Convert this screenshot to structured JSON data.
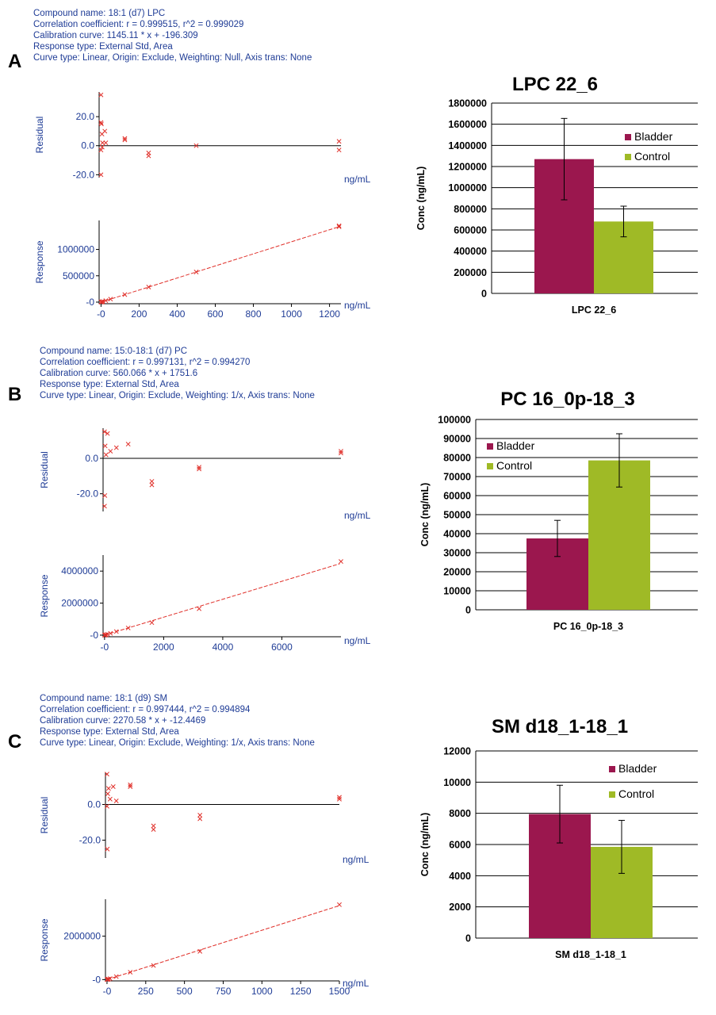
{
  "chart_data": [
    {
      "type": "scatter",
      "panel": "A",
      "info": [
        "Compound name: 18:1 (d7) LPC",
        "Correlation coefficient: r = 0.999515, r^2 = 0.999029",
        "Calibration curve: 1145.11 * x + -196.309",
        "Response type: External Std, Area",
        "Curve type: Linear, Origin: Exclude, Weighting: Null, Axis trans: None"
      ],
      "residual": {
        "ylabel": "Residual",
        "xlabel": "ng/mL",
        "ylim": [
          -22,
          37
        ],
        "yticks": [
          20,
          0,
          -20
        ],
        "ytick_labels": [
          "20.0",
          "0.0",
          "-20.0"
        ],
        "xlim": [
          -10,
          1260
        ],
        "points": [
          [
            0,
            35
          ],
          [
            0,
            16
          ],
          [
            0,
            -3
          ],
          [
            2,
            15
          ],
          [
            5,
            8
          ],
          [
            6,
            -1
          ],
          [
            8,
            2
          ],
          [
            20,
            10
          ],
          [
            25,
            2
          ],
          [
            125,
            5
          ],
          [
            125,
            4
          ],
          [
            250,
            -5
          ],
          [
            250,
            -7
          ],
          [
            500,
            0
          ],
          [
            1250,
            3
          ],
          [
            1250,
            -3
          ],
          [
            0,
            -20
          ]
        ]
      },
      "response": {
        "ylabel": "Response",
        "xlabel": "ng/mL",
        "ylim": [
          -30000,
          1550000
        ],
        "yticks": [
          1000000,
          500000,
          0
        ],
        "ytick_labels": [
          "1000000",
          "500000",
          "-0"
        ],
        "xlim": [
          -10,
          1260
        ],
        "xticks": [
          0,
          200,
          400,
          600,
          800,
          1000,
          1200
        ],
        "xtick_labels": [
          "-0",
          "200",
          "400",
          "600",
          "800",
          "1000",
          "1200"
        ],
        "points": [
          [
            0,
            0
          ],
          [
            1,
            1000
          ],
          [
            2,
            2500
          ],
          [
            5,
            5500
          ],
          [
            10,
            11300
          ],
          [
            25,
            28500
          ],
          [
            50,
            57000
          ],
          [
            125,
            143000
          ],
          [
            250,
            286000
          ],
          [
            500,
            572000
          ],
          [
            1250,
            1430000
          ],
          [
            1250,
            1450000
          ]
        ],
        "fit": {
          "slope": 1145.11,
          "intercept": -196.309
        }
      }
    },
    {
      "type": "bar",
      "panel": "A",
      "title": "LPC 22_6",
      "ylabel": "Conc (ng/mL)",
      "categories": [
        "LPC 22_6"
      ],
      "ylim": [
        0,
        1800000
      ],
      "yticks": [
        0,
        200000,
        400000,
        600000,
        800000,
        1000000,
        1200000,
        1400000,
        1600000,
        1800000
      ],
      "ytick_labels": [
        "0",
        "200000",
        "400000",
        "600000",
        "800000",
        "1000000",
        "1200000",
        "1400000",
        "1600000",
        "1800000"
      ],
      "legend": "right",
      "series": [
        {
          "name": "Bladder",
          "values": [
            1270000
          ],
          "err": [
            385000
          ],
          "color": "#9b174e"
        },
        {
          "name": "Control",
          "values": [
            680000
          ],
          "err": [
            145000
          ],
          "color": "#9fba26"
        }
      ]
    },
    {
      "type": "scatter",
      "panel": "B",
      "info": [
        "Compound name: 15:0-18:1 (d7) PC",
        "Correlation coefficient: r = 0.997131, r^2 = 0.994270",
        "Calibration curve: 560.066 * x + 1751.6",
        "Response type: External Std, Area",
        "Curve type: Linear, Origin: Exclude, Weighting: 1/x, Axis trans: None"
      ],
      "residual": {
        "ylabel": "Residual",
        "xlabel": "ng/mL",
        "ylim": [
          -30,
          17
        ],
        "yticks": [
          0,
          -20
        ],
        "ytick_labels": [
          "0.0",
          "-20.0"
        ],
        "xlim": [
          -50,
          8000
        ],
        "points": [
          [
            0,
            15
          ],
          [
            0,
            -27
          ],
          [
            10,
            -21
          ],
          [
            20,
            7
          ],
          [
            50,
            2
          ],
          [
            100,
            14
          ],
          [
            200,
            4
          ],
          [
            400,
            6
          ],
          [
            800,
            8
          ],
          [
            1600,
            -13
          ],
          [
            1600,
            -15
          ],
          [
            3200,
            -5
          ],
          [
            3200,
            -6
          ],
          [
            8000,
            4
          ],
          [
            8000,
            3
          ]
        ]
      },
      "response": {
        "ylabel": "Response",
        "xlabel": "ng/mL",
        "ylim": [
          -100000,
          5000000
        ],
        "yticks": [
          4000000,
          2000000,
          0
        ],
        "ytick_labels": [
          "4000000",
          "2000000",
          "-0"
        ],
        "xlim": [
          -50,
          8000
        ],
        "xticks": [
          0,
          2000,
          4000,
          6000
        ],
        "xtick_labels": [
          "-0",
          "2000",
          "4000",
          "6000"
        ],
        "points": [
          [
            0,
            0
          ],
          [
            5,
            3000
          ],
          [
            10,
            6000
          ],
          [
            20,
            12000
          ],
          [
            50,
            28000
          ],
          [
            100,
            56000
          ],
          [
            200,
            112000
          ],
          [
            400,
            224000
          ],
          [
            800,
            448000
          ],
          [
            1600,
            780000
          ],
          [
            3200,
            1650000
          ],
          [
            8000,
            4600000
          ]
        ],
        "fit": {
          "slope": 560.066,
          "intercept": 1751.6
        }
      }
    },
    {
      "type": "bar",
      "panel": "B",
      "title": "PC 16_0p-18_3",
      "ylabel": "Conc (ng/mL)",
      "categories": [
        "PC 16_0p-18_3"
      ],
      "ylim": [
        0,
        100000
      ],
      "yticks": [
        0,
        10000,
        20000,
        30000,
        40000,
        50000,
        60000,
        70000,
        80000,
        90000,
        100000
      ],
      "ytick_labels": [
        "0",
        "10000",
        "20000",
        "30000",
        "40000",
        "50000",
        "60000",
        "70000",
        "80000",
        "90000",
        "100000"
      ],
      "legend": "left",
      "series": [
        {
          "name": "Bladder",
          "values": [
            37500
          ],
          "err": [
            9500
          ],
          "color": "#9b174e"
        },
        {
          "name": "Control",
          "values": [
            78500
          ],
          "err": [
            14000
          ],
          "color": "#9fba26"
        }
      ]
    },
    {
      "type": "scatter",
      "panel": "C",
      "info": [
        "Compound name: 18:1 (d9) SM",
        "Correlation coefficient: r = 0.997444, r^2 = 0.994894",
        "Calibration curve: 2270.58 * x + -12.4469",
        "Response type: External Std, Area",
        "Curve type: Linear, Origin: Exclude, Weighting: 1/x, Axis trans: None"
      ],
      "residual": {
        "ylabel": "Residual",
        "xlabel": "ng/mL",
        "ylim": [
          -30,
          18
        ],
        "yticks": [
          0,
          -20
        ],
        "ytick_labels": [
          "0.0",
          "-20.0"
        ],
        "xlim": [
          -10,
          1500
        ],
        "points": [
          [
            0,
            17
          ],
          [
            0,
            -1
          ],
          [
            2,
            -25
          ],
          [
            5,
            6
          ],
          [
            10,
            9
          ],
          [
            20,
            3
          ],
          [
            40,
            10
          ],
          [
            60,
            2
          ],
          [
            150,
            10
          ],
          [
            150,
            11
          ],
          [
            300,
            -12
          ],
          [
            300,
            -14
          ],
          [
            600,
            -6
          ],
          [
            600,
            -8
          ],
          [
            1500,
            3
          ],
          [
            1500,
            4
          ]
        ]
      },
      "response": {
        "ylabel": "Response",
        "xlabel": "ng/mL",
        "ylim": [
          -60000,
          3700000
        ],
        "yticks": [
          2000000,
          0
        ],
        "ytick_labels": [
          "2000000",
          "-0"
        ],
        "xlim": [
          -10,
          1500
        ],
        "xticks": [
          0,
          250,
          500,
          750,
          1000,
          1250,
          1500
        ],
        "xtick_labels": [
          "-0",
          "250",
          "500",
          "750",
          "1000",
          "1250",
          "1500"
        ],
        "points": [
          [
            0,
            0
          ],
          [
            2,
            4500
          ],
          [
            5,
            11000
          ],
          [
            10,
            22000
          ],
          [
            20,
            45000
          ],
          [
            60,
            140000
          ],
          [
            150,
            340000
          ],
          [
            300,
            650000
          ],
          [
            600,
            1300000
          ],
          [
            1500,
            3450000
          ]
        ],
        "fit": {
          "slope": 2270.58,
          "intercept": -12.4469
        }
      }
    },
    {
      "type": "bar",
      "panel": "C",
      "title": "SM d18_1-18_1",
      "ylabel": "Conc (ng/mL)",
      "categories": [
        "SM d18_1-18_1"
      ],
      "ylim": [
        0,
        12000
      ],
      "yticks": [
        0,
        2000,
        4000,
        6000,
        8000,
        10000,
        12000
      ],
      "ytick_labels": [
        "0",
        "2000",
        "4000",
        "6000",
        "8000",
        "10000",
        "12000"
      ],
      "legend": "right",
      "series": [
        {
          "name": "Bladder",
          "values": [
            7950
          ],
          "err": [
            1850
          ],
          "color": "#9b174e"
        },
        {
          "name": "Control",
          "values": [
            5850
          ],
          "err": [
            1700
          ],
          "color": "#9fba26"
        }
      ]
    }
  ]
}
